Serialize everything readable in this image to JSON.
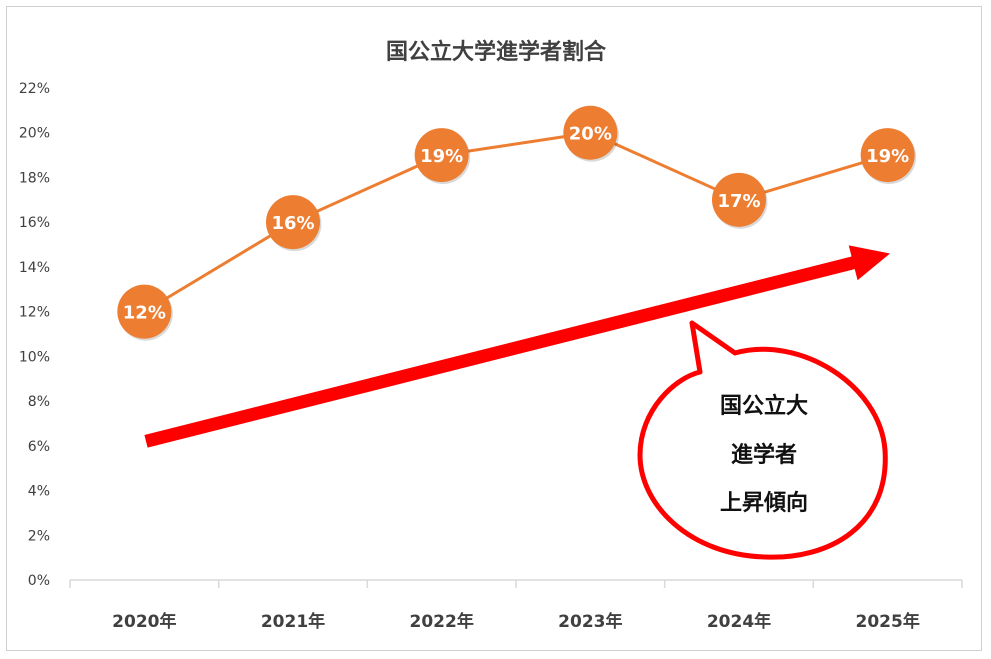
{
  "chart_data": {
    "type": "line",
    "title": "国公立大学進学者割合",
    "categories": [
      "2020年",
      "2021年",
      "2022年",
      "2023年",
      "2024年",
      "2025年"
    ],
    "series": [
      {
        "values": [
          0.12,
          0.16,
          0.19,
          0.2,
          0.17,
          0.19
        ],
        "data_labels": [
          "12%",
          "16%",
          "19%",
          "20%",
          "17%",
          "19%"
        ],
        "color": "#ED7D31"
      }
    ],
    "ylim": [
      0,
      0.22
    ],
    "yticks": [
      0,
      0.02,
      0.04,
      0.06,
      0.08,
      0.1,
      0.12,
      0.14,
      0.16,
      0.18,
      0.2,
      0.22
    ],
    "ytick_labels": [
      "0%",
      "2%",
      "4%",
      "6%",
      "8%",
      "10%",
      "12%",
      "14%",
      "16%",
      "18%",
      "20%",
      "22%"
    ],
    "grid": false,
    "annotations": {
      "trend_arrow": {
        "color": "#FF0000",
        "from_y": 0.062,
        "to_y": 0.146
      },
      "callout": {
        "lines": [
          "国公立大",
          "進学者",
          "上昇傾向"
        ],
        "border_color": "#FF0000"
      }
    }
  }
}
